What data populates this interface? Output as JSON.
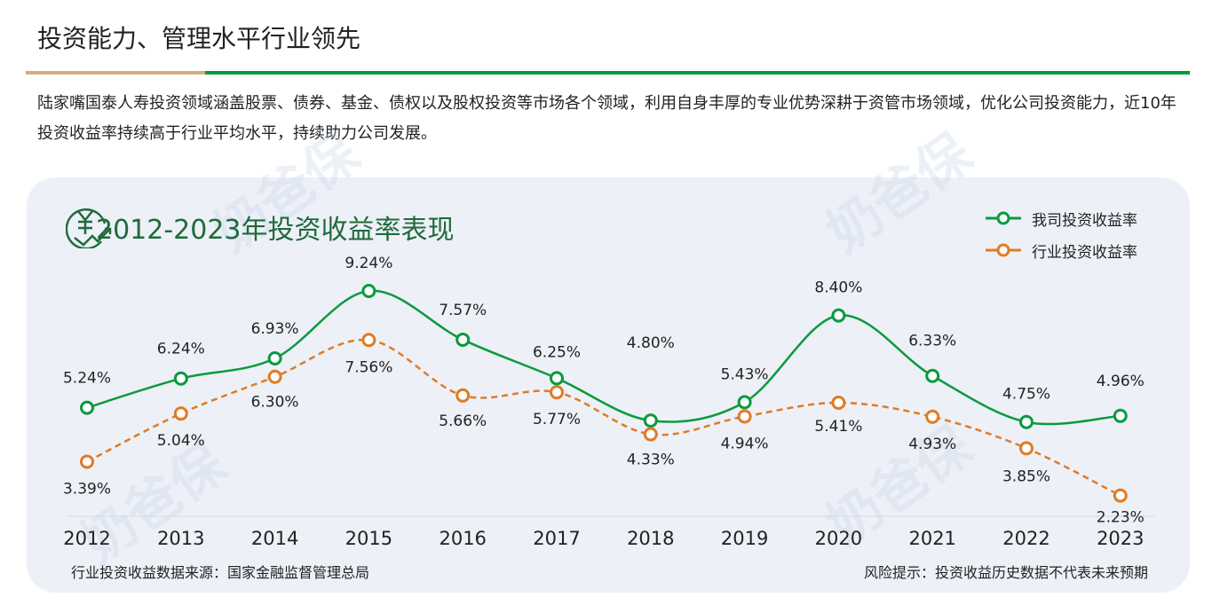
{
  "header": {
    "title": "投资能力、管理水平行业领先"
  },
  "description": "陆家嘴国泰人寿投资领域涵盖股票、债券、基金、债权以及股权投资等市场各个领域，利用自身丰厚的专业优势深耕于资管市场领域，优化公司投资能力，近10年投资收益率持续高于行业平均水平，持续助力公司发展。",
  "watermark": "奶爸保",
  "colors": {
    "company": "#0a9a3e",
    "industry": "#e07b24",
    "title": "#1f6b3a",
    "accent_bar": "#d8ae74",
    "bar": "#009a3e"
  },
  "chart_data": {
    "type": "line",
    "title": "2012-2023年投资收益率表现",
    "title_icon": "yen-growth-icon",
    "categories": [
      "2012",
      "2013",
      "2014",
      "2015",
      "2016",
      "2017",
      "2018",
      "2019",
      "2020",
      "2021",
      "2022",
      "2023"
    ],
    "series": [
      {
        "name": "我司投资收益率",
        "values": [
          5.24,
          6.24,
          6.93,
          9.24,
          7.57,
          6.25,
          4.8,
          5.43,
          8.4,
          6.33,
          4.75,
          4.96
        ],
        "style": "solid",
        "color": "#0a9a3e"
      },
      {
        "name": "行业投资收益率",
        "values": [
          3.39,
          5.04,
          6.3,
          7.56,
          5.66,
          5.77,
          4.33,
          4.94,
          5.41,
          4.93,
          3.85,
          2.23
        ],
        "style": "dashed",
        "color": "#e07b24"
      }
    ],
    "value_suffix": "%",
    "legend": "top-right",
    "grid": false
  },
  "footer": {
    "source": "行业投资收益数据来源：国家金融监督管理总局",
    "risk": "风险提示：投资收益历史数据不代表未来预期"
  }
}
